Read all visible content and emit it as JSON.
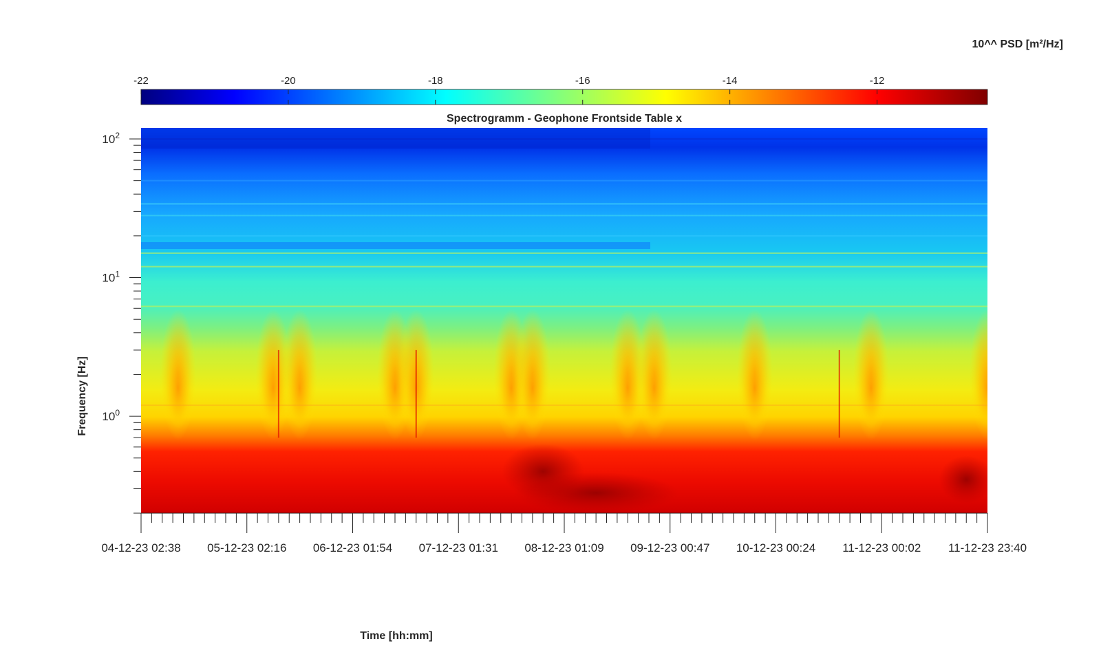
{
  "chart_data": {
    "type": "heatmap",
    "title": "Spectrogramm - Geophone Frontside Table x",
    "xlabel": "Time [hh:mm]",
    "ylabel": "Frequency [Hz]",
    "y_scale": "log",
    "ylim": [
      0.2,
      120
    ],
    "y_ticks": [
      {
        "value": 1,
        "base": "10",
        "exp": "0"
      },
      {
        "value": 10,
        "base": "10",
        "exp": "1"
      },
      {
        "value": 100,
        "base": "10",
        "exp": "2"
      }
    ],
    "x_tick_labels": [
      "04-12-23 02:38",
      "05-12-23 02:16",
      "06-12-23 01:54",
      "07-12-23 01:31",
      "08-12-23 01:09",
      "09-12-23 00:47",
      "10-12-23 00:24",
      "11-12-23 00:02",
      "11-12-23 23:40"
    ],
    "colorbar": {
      "label": "10^^ PSD [m²/Hz]",
      "range": [
        -22,
        -10.5
      ],
      "ticks": [
        "-22",
        "-20",
        "-18",
        "-16",
        "-14",
        "-12"
      ],
      "tick_values": [
        -22,
        -20,
        -18,
        -16,
        -14,
        -12
      ],
      "colormap": "jet"
    },
    "colormap_colors": [
      "#00007f",
      "#0000ff",
      "#00ffff",
      "#ffff00",
      "#ff0000",
      "#7f0000"
    ],
    "frequency_bands": [
      {
        "f_min": 80,
        "f_max": 120,
        "log_psd": -20.5
      },
      {
        "f_min": 40,
        "f_max": 80,
        "log_psd": -19.5
      },
      {
        "f_min": 18,
        "f_max": 40,
        "log_psd": -18.5
      },
      {
        "f_min": 6,
        "f_max": 18,
        "log_psd": -17.2
      },
      {
        "f_min": 3,
        "f_max": 6,
        "log_psd": -16.3
      },
      {
        "f_min": 1.2,
        "f_max": 3,
        "log_psd": -15.3
      },
      {
        "f_min": 0.8,
        "f_max": 1.2,
        "log_psd": -14.8
      },
      {
        "f_min": 0.6,
        "f_max": 0.8,
        "log_psd": -13.6
      },
      {
        "f_min": 0.2,
        "f_max": 0.6,
        "log_psd": -12.0
      }
    ],
    "activity_periods_day_index": [
      0.35,
      1.25,
      1.5,
      2.4,
      2.6,
      3.5,
      3.7,
      4.6,
      4.85,
      5.8,
      6.9,
      8.0
    ]
  }
}
